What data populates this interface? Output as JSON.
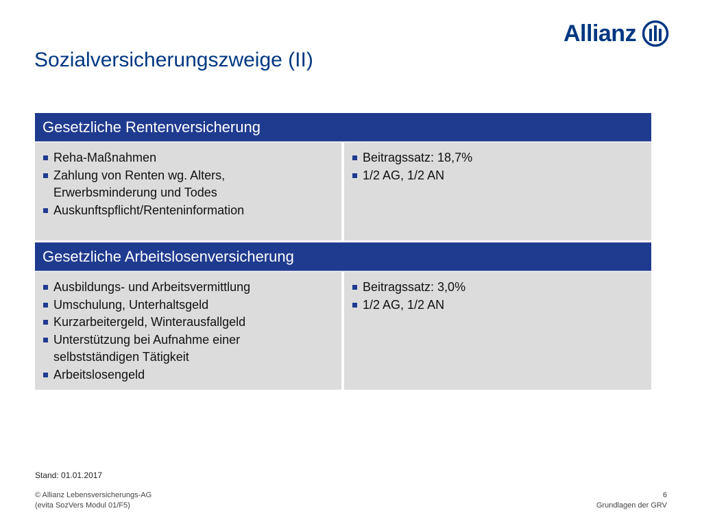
{
  "brand": {
    "name": "Allianz"
  },
  "title": "Sozialversicherungszweige (II)",
  "sections": [
    {
      "header": "Gesetzliche Rentenversicherung",
      "left": [
        "Reha-Maßnahmen",
        "Zahlung von Renten wg. Alters, Erwerbsminderung und Todes",
        "Auskunftspflicht/Renteninformation"
      ],
      "right": [
        "Beitragssatz: 18,7%",
        "1/2 AG, 1/2 AN"
      ]
    },
    {
      "header": "Gesetzliche Arbeitslosenversicherung",
      "left": [
        "Ausbildungs- und Arbeitsvermittlung",
        "Umschulung, Unterhaltsgeld",
        "Kurzarbeitergeld, Winterausfallgeld",
        "Unterstützung bei Aufnahme einer selbstständigen Tätigkeit",
        "Arbeitslosengeld"
      ],
      "right": [
        "Beitragssatz: 3,0%",
        "1/2 AG, 1/2 AN"
      ]
    }
  ],
  "footer": {
    "stand": "Stand: 01.01.2017",
    "copyright": "© Allianz Lebensversicherungs-AG",
    "source": "(evita SozVers Modul 01/F5)",
    "page_number": "6",
    "section_name": "Grundlagen der GRV"
  },
  "colors": {
    "brand_blue": "#003781",
    "header_bar": "#1f3b8f",
    "cell_bg": "#dcdcdc"
  }
}
